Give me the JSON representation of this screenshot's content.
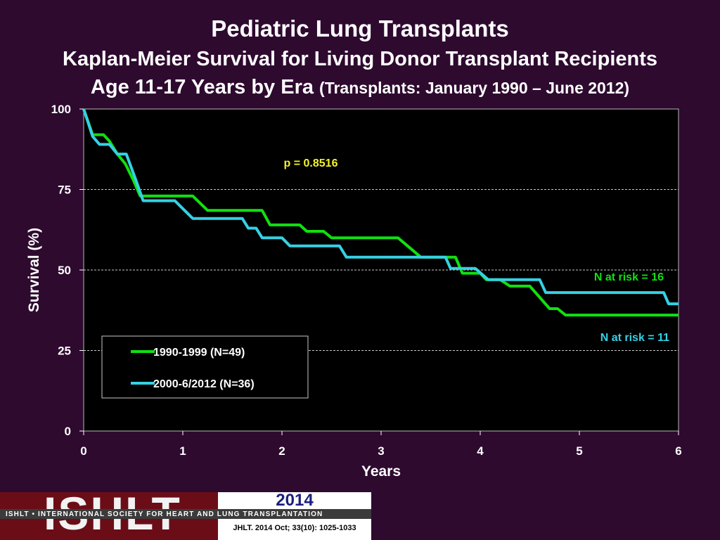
{
  "header": {
    "title": "Pediatric Lung Transplants",
    "subtitle_line1": "Kaplan-Meier Survival for Living Donor Transplant Recipients",
    "subtitle_line2_main": "Age 11-17 Years by Era ",
    "subtitle_line2_paren": "(Transplants: January 1990 – June 2012)"
  },
  "chart_data": {
    "type": "line",
    "xlabel": "Years",
    "ylabel": "Survival (%)",
    "xlim": [
      0,
      6
    ],
    "ylim": [
      0,
      100
    ],
    "x_ticks": [
      "0",
      "1",
      "2",
      "3",
      "4",
      "5",
      "6"
    ],
    "y_ticks": [
      "0",
      "25",
      "50",
      "75",
      "100"
    ],
    "grid": "horizontal dashed at 75, 50, 25",
    "annotations": {
      "p_value": "p = 0.8516",
      "n_at_risk_green": "N at risk = 16",
      "n_at_risk_cyan": "N at risk =  11"
    },
    "legend": {
      "placement": "lower-left",
      "entries": [
        "1990-1999 (N=49)",
        "2000-6/2012 (N=36)"
      ]
    },
    "series": [
      {
        "name": "1990-1999 (N=49)",
        "color": "#11e011",
        "x": [
          0,
          0.09,
          0.2,
          0.26,
          0.34,
          0.42,
          0.5,
          0.57,
          0.64,
          1.1,
          1.25,
          1.8,
          1.88,
          2.18,
          2.25,
          2.42,
          2.5,
          3.17,
          3.4,
          3.75,
          3.82,
          4.0,
          4.06,
          4.2,
          4.3,
          4.5,
          4.7,
          4.78,
          4.86,
          5.0,
          6.0
        ],
        "y": [
          100,
          92,
          92,
          90,
          86,
          83,
          78,
          73,
          73,
          73,
          68.5,
          68.5,
          64,
          64,
          62,
          62,
          60,
          60,
          54,
          54,
          49,
          49,
          47,
          47,
          45,
          45,
          38,
          38,
          36,
          36,
          36
        ]
      },
      {
        "name": "2000-6/2012 (N=36)",
        "color": "#35d1e4",
        "x": [
          0,
          0.09,
          0.16,
          0.26,
          0.34,
          0.43,
          0.52,
          0.6,
          0.92,
          1.1,
          1.6,
          1.66,
          1.74,
          1.8,
          2.0,
          2.08,
          2.58,
          2.65,
          3.4,
          3.65,
          3.7,
          3.95,
          4.08,
          4.6,
          4.66,
          5.85,
          5.9,
          6.0
        ],
        "y": [
          100,
          91.5,
          89,
          89,
          86,
          86,
          78.5,
          71.5,
          71.5,
          66,
          66,
          63,
          63,
          60,
          60,
          57.5,
          57.5,
          54,
          54,
          54,
          50.5,
          50.5,
          47,
          47,
          43,
          43,
          39.5,
          39.5
        ]
      }
    ]
  },
  "footer": {
    "logo_letters": "ISHLT",
    "org_line": "ISHLT • INTERNATIONAL SOCIETY FOR HEART AND LUNG TRANSPLANTATION",
    "year": "2014",
    "citation": "JHLT. 2014 Oct; 33(10): 1025-1033"
  }
}
